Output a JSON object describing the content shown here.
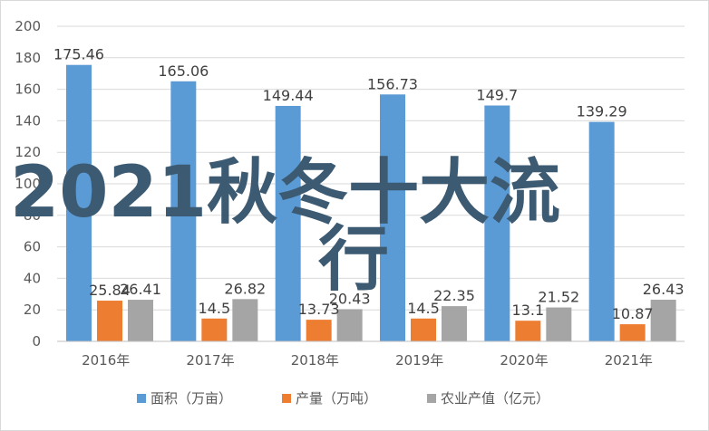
{
  "chart_data": {
    "type": "bar",
    "categories": [
      "2016年",
      "2017年",
      "2018年",
      "2019年",
      "2020年",
      "2021年"
    ],
    "series": [
      {
        "name": "面积（万亩）",
        "color": "#5b9bd5",
        "values": [
          175.46,
          165.06,
          149.44,
          156.73,
          149.7,
          139.29
        ],
        "labels": [
          "175.46",
          "165.06",
          "149.44",
          "156.73",
          "149.7",
          "139.29"
        ]
      },
      {
        "name": "产量（万吨）",
        "color": "#ed7d31",
        "values": [
          25.84,
          14.5,
          13.73,
          14.5,
          13.1,
          10.87
        ],
        "labels": [
          "25.84",
          "14.5",
          "13.73",
          "14.5",
          "13.1",
          "10.87"
        ]
      },
      {
        "name": "农业产值（亿元）",
        "color": "#a5a5a5",
        "values": [
          26.41,
          26.82,
          20.43,
          22.35,
          21.52,
          26.43
        ],
        "labels": [
          "26.41",
          "26.82",
          "20.43",
          "22.35",
          "21.52",
          "26.43"
        ]
      }
    ],
    "ylim": [
      0,
      200
    ],
    "yticks": [
      "0",
      "20",
      "40",
      "60",
      "80",
      "100",
      "120",
      "140",
      "160",
      "180",
      "200"
    ],
    "grid": true,
    "legend_position": "bottom"
  },
  "overlay": {
    "line1": "2021秋冬十大流",
    "line2": "行"
  }
}
